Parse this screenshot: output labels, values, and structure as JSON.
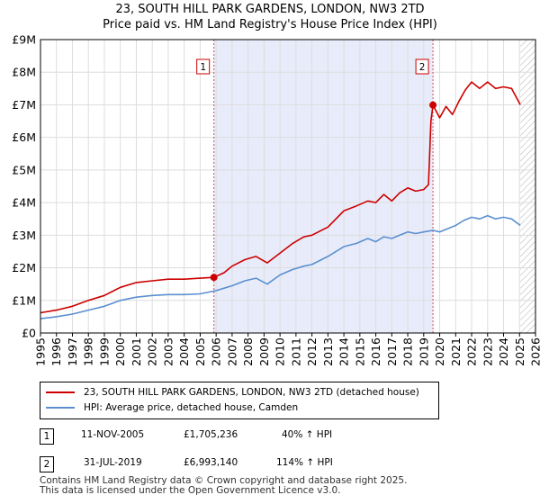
{
  "chart_data": {
    "type": "line",
    "title": "23, SOUTH HILL PARK GARDENS, LONDON, NW3 2TD",
    "subtitle": "Price paid vs. HM Land Registry's House Price Index (HPI)",
    "ylim": [
      0,
      9000000
    ],
    "xlim": [
      1995,
      2026
    ],
    "y_tick_values": [
      0,
      1000000,
      2000000,
      3000000,
      4000000,
      5000000,
      6000000,
      7000000,
      8000000,
      9000000
    ],
    "y_tick_labels": [
      "£0",
      "£1M",
      "£2M",
      "£3M",
      "£4M",
      "£5M",
      "£6M",
      "£7M",
      "£8M",
      "£9M"
    ],
    "x_tick_labels": [
      "1995",
      "1996",
      "1997",
      "1998",
      "1999",
      "2000",
      "2001",
      "2002",
      "2003",
      "2004",
      "2005",
      "2006",
      "2007",
      "2008",
      "2009",
      "2010",
      "2011",
      "2012",
      "2013",
      "2014",
      "2015",
      "2016",
      "2017",
      "2018",
      "2019",
      "2020",
      "2021",
      "2022",
      "2023",
      "2024",
      "2025",
      "2026"
    ],
    "shaded_region": [
      2005.86,
      2019.58
    ],
    "data_end": 2025.05,
    "series": [
      {
        "name": "23, SOUTH HILL PARK GARDENS, LONDON, NW3 2TD (detached house)",
        "color": "#cc0000",
        "x": [
          1995,
          1996,
          1997,
          1998,
          1999,
          2000,
          2001,
          2002,
          2003,
          2004,
          2005,
          2005.86,
          2006.5,
          2007,
          2007.8,
          2008.5,
          2009.2,
          2010,
          2010.8,
          2011.5,
          2012,
          2013,
          2014,
          2014.8,
          2015.5,
          2016,
          2016.5,
          2017,
          2017.5,
          2018,
          2018.5,
          2019,
          2019.3,
          2019.45,
          2019.58,
          2020,
          2020.4,
          2020.8,
          2021.2,
          2021.6,
          2022,
          2022.5,
          2023,
          2023.5,
          2024,
          2024.5,
          2025.05
        ],
        "values": [
          620000,
          700000,
          820000,
          1000000,
          1150000,
          1400000,
          1550000,
          1600000,
          1650000,
          1650000,
          1680000,
          1705236,
          1850000,
          2050000,
          2250000,
          2350000,
          2150000,
          2450000,
          2750000,
          2950000,
          3000000,
          3250000,
          3750000,
          3900000,
          4050000,
          4000000,
          4250000,
          4050000,
          4300000,
          4450000,
          4350000,
          4400000,
          4550000,
          6500000,
          6993140,
          6600000,
          6950000,
          6700000,
          7100000,
          7450000,
          7700000,
          7500000,
          7700000,
          7500000,
          7550000,
          7500000,
          7000000
        ]
      },
      {
        "name": "HPI: Average price, detached house, Camden",
        "color": "#5b8fd0",
        "x": [
          1995,
          1996,
          1997,
          1998,
          1999,
          2000,
          2001,
          2002,
          2003,
          2004,
          2005,
          2006,
          2007,
          2007.8,
          2008.5,
          2009.2,
          2010,
          2010.8,
          2011.5,
          2012,
          2013,
          2014,
          2014.8,
          2015.5,
          2016,
          2016.5,
          2017,
          2017.5,
          2018,
          2018.5,
          2019,
          2019.58,
          2020,
          2020.5,
          2021,
          2021.5,
          2022,
          2022.5,
          2023,
          2023.5,
          2024,
          2024.5,
          2025.05
        ],
        "values": [
          440000,
          500000,
          580000,
          700000,
          820000,
          1000000,
          1100000,
          1150000,
          1180000,
          1180000,
          1200000,
          1300000,
          1450000,
          1600000,
          1680000,
          1500000,
          1780000,
          1950000,
          2050000,
          2100000,
          2350000,
          2650000,
          2750000,
          2900000,
          2800000,
          2950000,
          2900000,
          3000000,
          3100000,
          3050000,
          3100000,
          3150000,
          3100000,
          3200000,
          3300000,
          3450000,
          3550000,
          3500000,
          3600000,
          3500000,
          3550000,
          3500000,
          3300000
        ]
      }
    ],
    "sales": [
      {
        "id": "1",
        "x": 2005.86,
        "price": 1705236
      },
      {
        "id": "2",
        "x": 2019.58,
        "price": 6993140
      }
    ]
  },
  "legend": {
    "property_label": "23, SOUTH HILL PARK GARDENS, LONDON, NW3 2TD (detached house)",
    "hpi_label": "HPI: Average price, detached house, Camden"
  },
  "annotations": [
    {
      "id": "1",
      "date": "11-NOV-2005",
      "price": "£1,705,236",
      "hpi": "40% ↑ HPI"
    },
    {
      "id": "2",
      "date": "31-JUL-2019",
      "price": "£6,993,140",
      "hpi": "114% ↑ HPI"
    }
  ],
  "footer": {
    "line1": "Contains HM Land Registry data © Crown copyright and database right 2025.",
    "line2": "This data is licensed under the Open Government Licence v3.0."
  }
}
